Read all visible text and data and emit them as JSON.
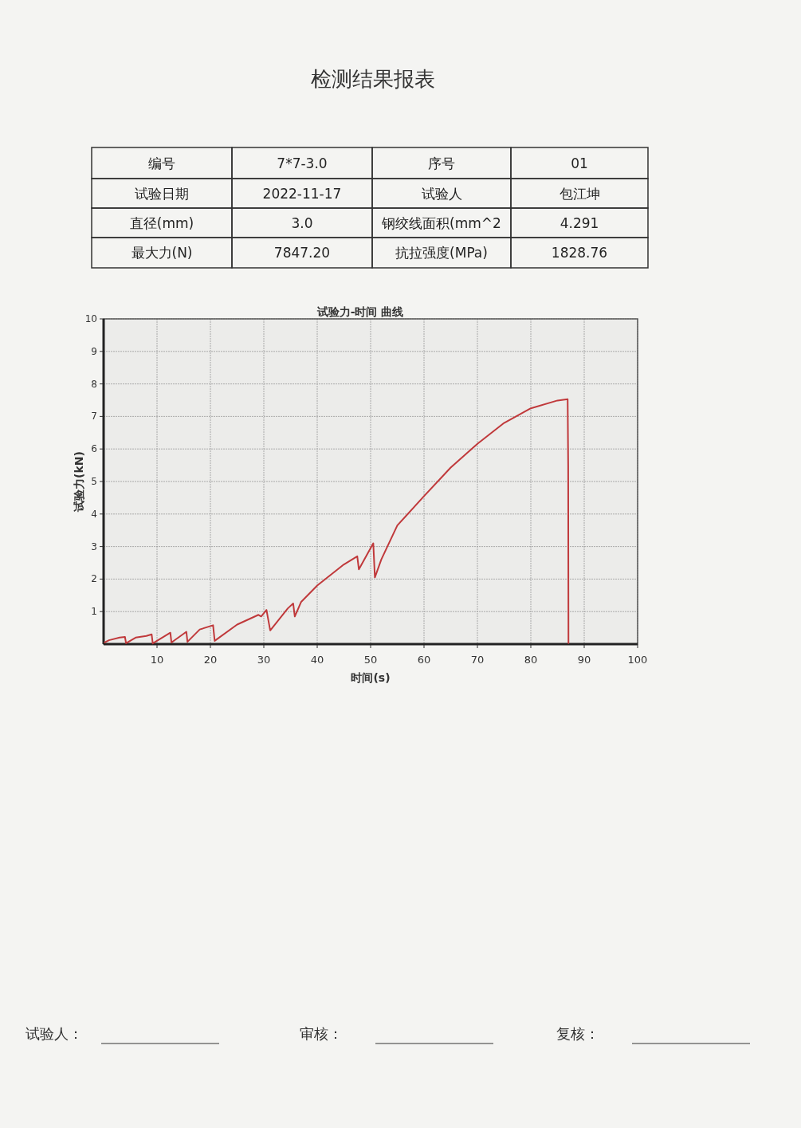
{
  "chart_data": {
    "type": "line",
    "title": "检测结果报表",
    "subtitle": "试验力-时间 曲线",
    "xlabel": "时间(s)",
    "ylabel": "试验力(kN)",
    "x": [
      0.2,
      1,
      3,
      4,
      4.2,
      6,
      8,
      9,
      9.2,
      12.5,
      12.7,
      15.5,
      15.7,
      18,
      20.5,
      20.8,
      25,
      29,
      29.5,
      30.5,
      31.2,
      34.5,
      35.5,
      35.8,
      37,
      40,
      45,
      47.5,
      47.8,
      50.5,
      50.8,
      52,
      55,
      60,
      65,
      70,
      75,
      80,
      85,
      86.9,
      87,
      87.05
    ],
    "series": [
      {
        "color": "#c0393b",
        "values": [
          0.05,
          0.12,
          0.2,
          0.22,
          0.03,
          0.2,
          0.25,
          0.3,
          0.02,
          0.35,
          0.05,
          0.38,
          0.07,
          0.45,
          0.58,
          0.1,
          0.6,
          0.9,
          0.85,
          1.05,
          0.42,
          1.1,
          1.25,
          0.85,
          1.3,
          1.8,
          2.45,
          2.7,
          2.3,
          3.1,
          2.05,
          2.6,
          3.65,
          4.55,
          5.43,
          6.16,
          6.8,
          7.25,
          7.49,
          7.53,
          5.48,
          0.03
        ]
      }
    ],
    "xlim": [
      0,
      100
    ],
    "ylim": [
      0,
      10
    ],
    "xticks": [
      10,
      20,
      30,
      40,
      50,
      60,
      70,
      80,
      90,
      100
    ],
    "yticks": [
      1,
      2,
      3,
      4,
      5,
      6,
      7,
      8,
      9,
      10
    ],
    "grid": true,
    "line_style": "solid",
    "marker": "none",
    "annotations": [
      "编号",
      "7*7-3.0",
      "序号",
      "01",
      "试验日期",
      "2022-11-17",
      "试验人",
      "包江坤",
      "直径(mm)",
      "3.0",
      "钢绞线面积(mm^2",
      "4.291",
      "最大力(N)",
      "7847.20",
      "抗拉强度(MPa)",
      "1828.76",
      "试验人：",
      "审核：",
      "复核："
    ]
  }
}
